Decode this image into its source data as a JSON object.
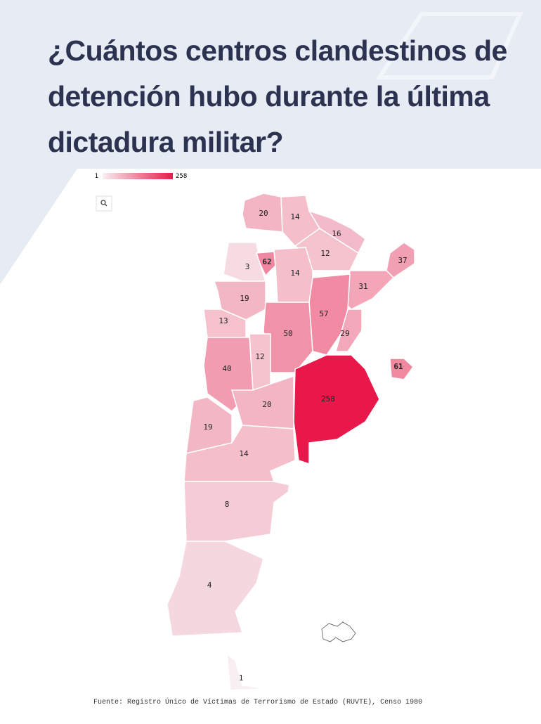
{
  "title": "¿Cuántos centros clandestinos de detención hubo durante la última dictadura militar?",
  "chart_data": {
    "type": "choropleth",
    "legend": {
      "min": 1,
      "max": 258
    },
    "color_low": "#f7eff1",
    "color_high": "#e8194a",
    "color_scale": "sqrt",
    "regions": [
      20,
      14,
      16,
      12,
      37,
      3,
      62,
      14,
      31,
      19,
      57,
      13,
      50,
      29,
      12,
      40,
      61,
      258,
      20,
      19,
      14,
      8,
      4,
      1
    ]
  },
  "source": "Fuente: Registro Único de Víctimas de Terrorismo de Estado (RUVTE), Censo 1980"
}
